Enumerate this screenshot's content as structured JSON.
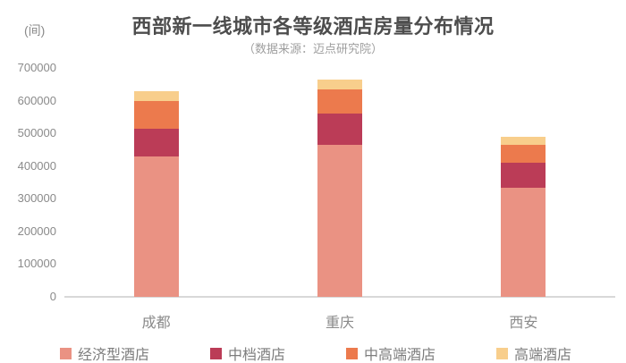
{
  "unit_label": "(间)",
  "title": "西部新一线城市各等级酒店房量分布情况",
  "subtitle": "（数据来源：迈点研究院）",
  "chart_data": {
    "type": "bar",
    "stacked": true,
    "title": "西部新一线城市各等级酒店房量分布情况",
    "subtitle": "（数据来源：迈点研究院）",
    "ylabel": "(间)",
    "ylim": [
      0,
      700000
    ],
    "yticks": [
      0,
      100000,
      200000,
      300000,
      400000,
      500000,
      600000,
      700000
    ],
    "grid": false,
    "legend_position": "bottom",
    "categories": [
      "成都",
      "重庆",
      "西安"
    ],
    "series": [
      {
        "name": "经济型酒店",
        "color": "#EA9283",
        "values": [
          430000,
          465000,
          335000
        ]
      },
      {
        "name": "中档酒店",
        "color": "#BB3C57",
        "values": [
          85000,
          95000,
          75000
        ]
      },
      {
        "name": "中高端酒店",
        "color": "#EC7A4D",
        "values": [
          85000,
          75000,
          55000
        ]
      },
      {
        "name": "高端酒店",
        "color": "#F8CE8C",
        "values": [
          30000,
          30000,
          25000
        ]
      }
    ]
  },
  "colors": {
    "background": "#FFFFFF",
    "title": "#4D4D4D",
    "subtitle": "#9E9E9E",
    "axis_text": "#8A8A8A",
    "legend_text": "#7D7D7D",
    "axis_line": "#D8D8D8"
  }
}
